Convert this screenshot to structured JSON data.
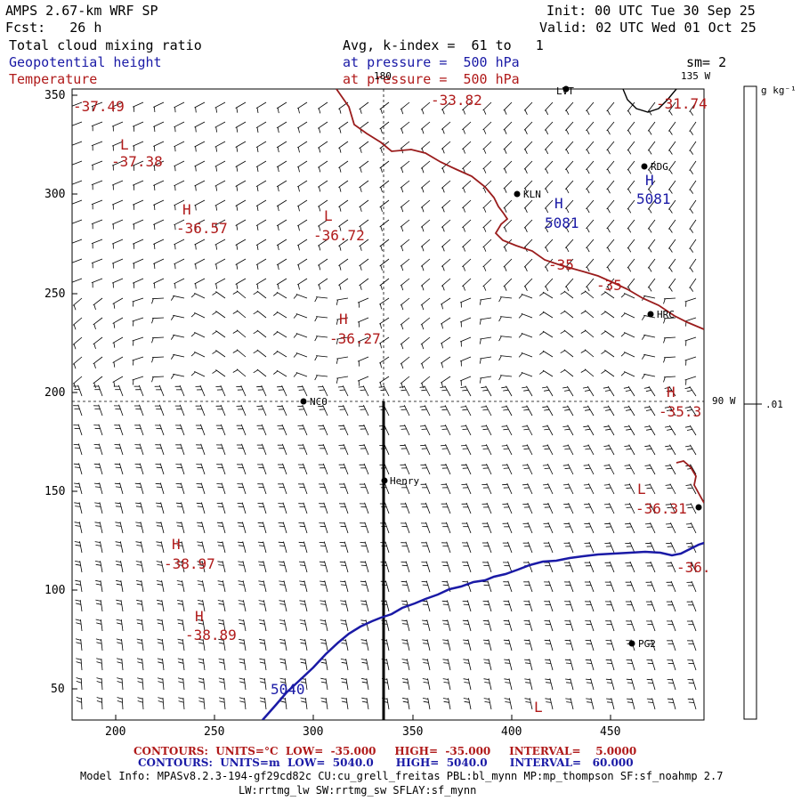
{
  "header": {
    "title": "AMPS 2.67-km WRF SP",
    "init": "Init: 00 UTC Tue 30 Sep 25",
    "forecast": "Fcst:   26 h",
    "valid": "Valid: 02 UTC Wed 01 Oct 25",
    "field1": "Total cloud mixing ratio",
    "avg": "Avg, k-index =  61 to   1",
    "field2": "Geopotential height",
    "pressure1": "at pressure =  500 hPa",
    "sm": "sm= 2",
    "field3": "Temperature",
    "pressure2": "at pressure =  500 hPa"
  },
  "colors": {
    "temperature": "#9a1c1c",
    "height": "#1a1aa6"
  },
  "axes": {
    "x_ticks": [
      "200",
      "250",
      "300",
      "350",
      "400",
      "450"
    ],
    "y_ticks": [
      "350",
      "300",
      "250",
      "200",
      "150",
      "100",
      "50"
    ]
  },
  "grid_labels": {
    "lon_180": "180",
    "lon_135": "135 W",
    "lon_90": "90 W"
  },
  "colorbar": {
    "units": "g kg⁻¹",
    "value": ".01"
  },
  "stations": [
    {
      "name": "LVT"
    },
    {
      "name": "RDG"
    },
    {
      "name": "KLN"
    },
    {
      "name": "HRC"
    },
    {
      "name": "NCO"
    },
    {
      "name": "Henry"
    },
    {
      "name": "PG2"
    }
  ],
  "temperature_labels": [
    {
      "marker": "",
      "value": "-37.49"
    },
    {
      "marker": "L",
      "value": "-37.38"
    },
    {
      "marker": "H",
      "value": "-36.57"
    },
    {
      "marker": "L",
      "value": "-36.72"
    },
    {
      "marker": "",
      "value": "-33.82"
    },
    {
      "marker": "",
      "value": "-31.74"
    },
    {
      "marker": "H",
      "value": "-36.27"
    },
    {
      "marker": "H",
      "value": "-35.3"
    },
    {
      "marker": "L",
      "value": "-36.31"
    },
    {
      "marker": "H",
      "value": "-38.97"
    },
    {
      "marker": "H",
      "value": "-38.89"
    },
    {
      "marker": "",
      "value": "-36."
    },
    {
      "marker": "",
      "value": "-35"
    },
    {
      "marker": "",
      "value": "-35"
    }
  ],
  "l_marker": "L",
  "height_labels": [
    {
      "marker": "H",
      "value": "5081"
    },
    {
      "marker": "H",
      "value": "5081"
    },
    {
      "marker": "",
      "value": "5040"
    }
  ],
  "footer": {
    "contours1": "CONTOURS:  UNITS=°C  LOW=  -35.000     HIGH=  -35.000     INTERVAL=    5.0000",
    "contours2": "CONTOURS:  UNITS=m  LOW=  5040.0      HIGH=  5040.0      INTERVAL=   60.000",
    "model_info": "Model Info: MPASv8.2.3-194-gf29cd82c CU:cu_grell_freitas PBL:bl_mynn MP:mp_thompson SF:sf_noahmp 2.7",
    "model_info2": "LW:rrtmg_lw SW:rrtmg_sw SFLAY:sf_mynn"
  }
}
